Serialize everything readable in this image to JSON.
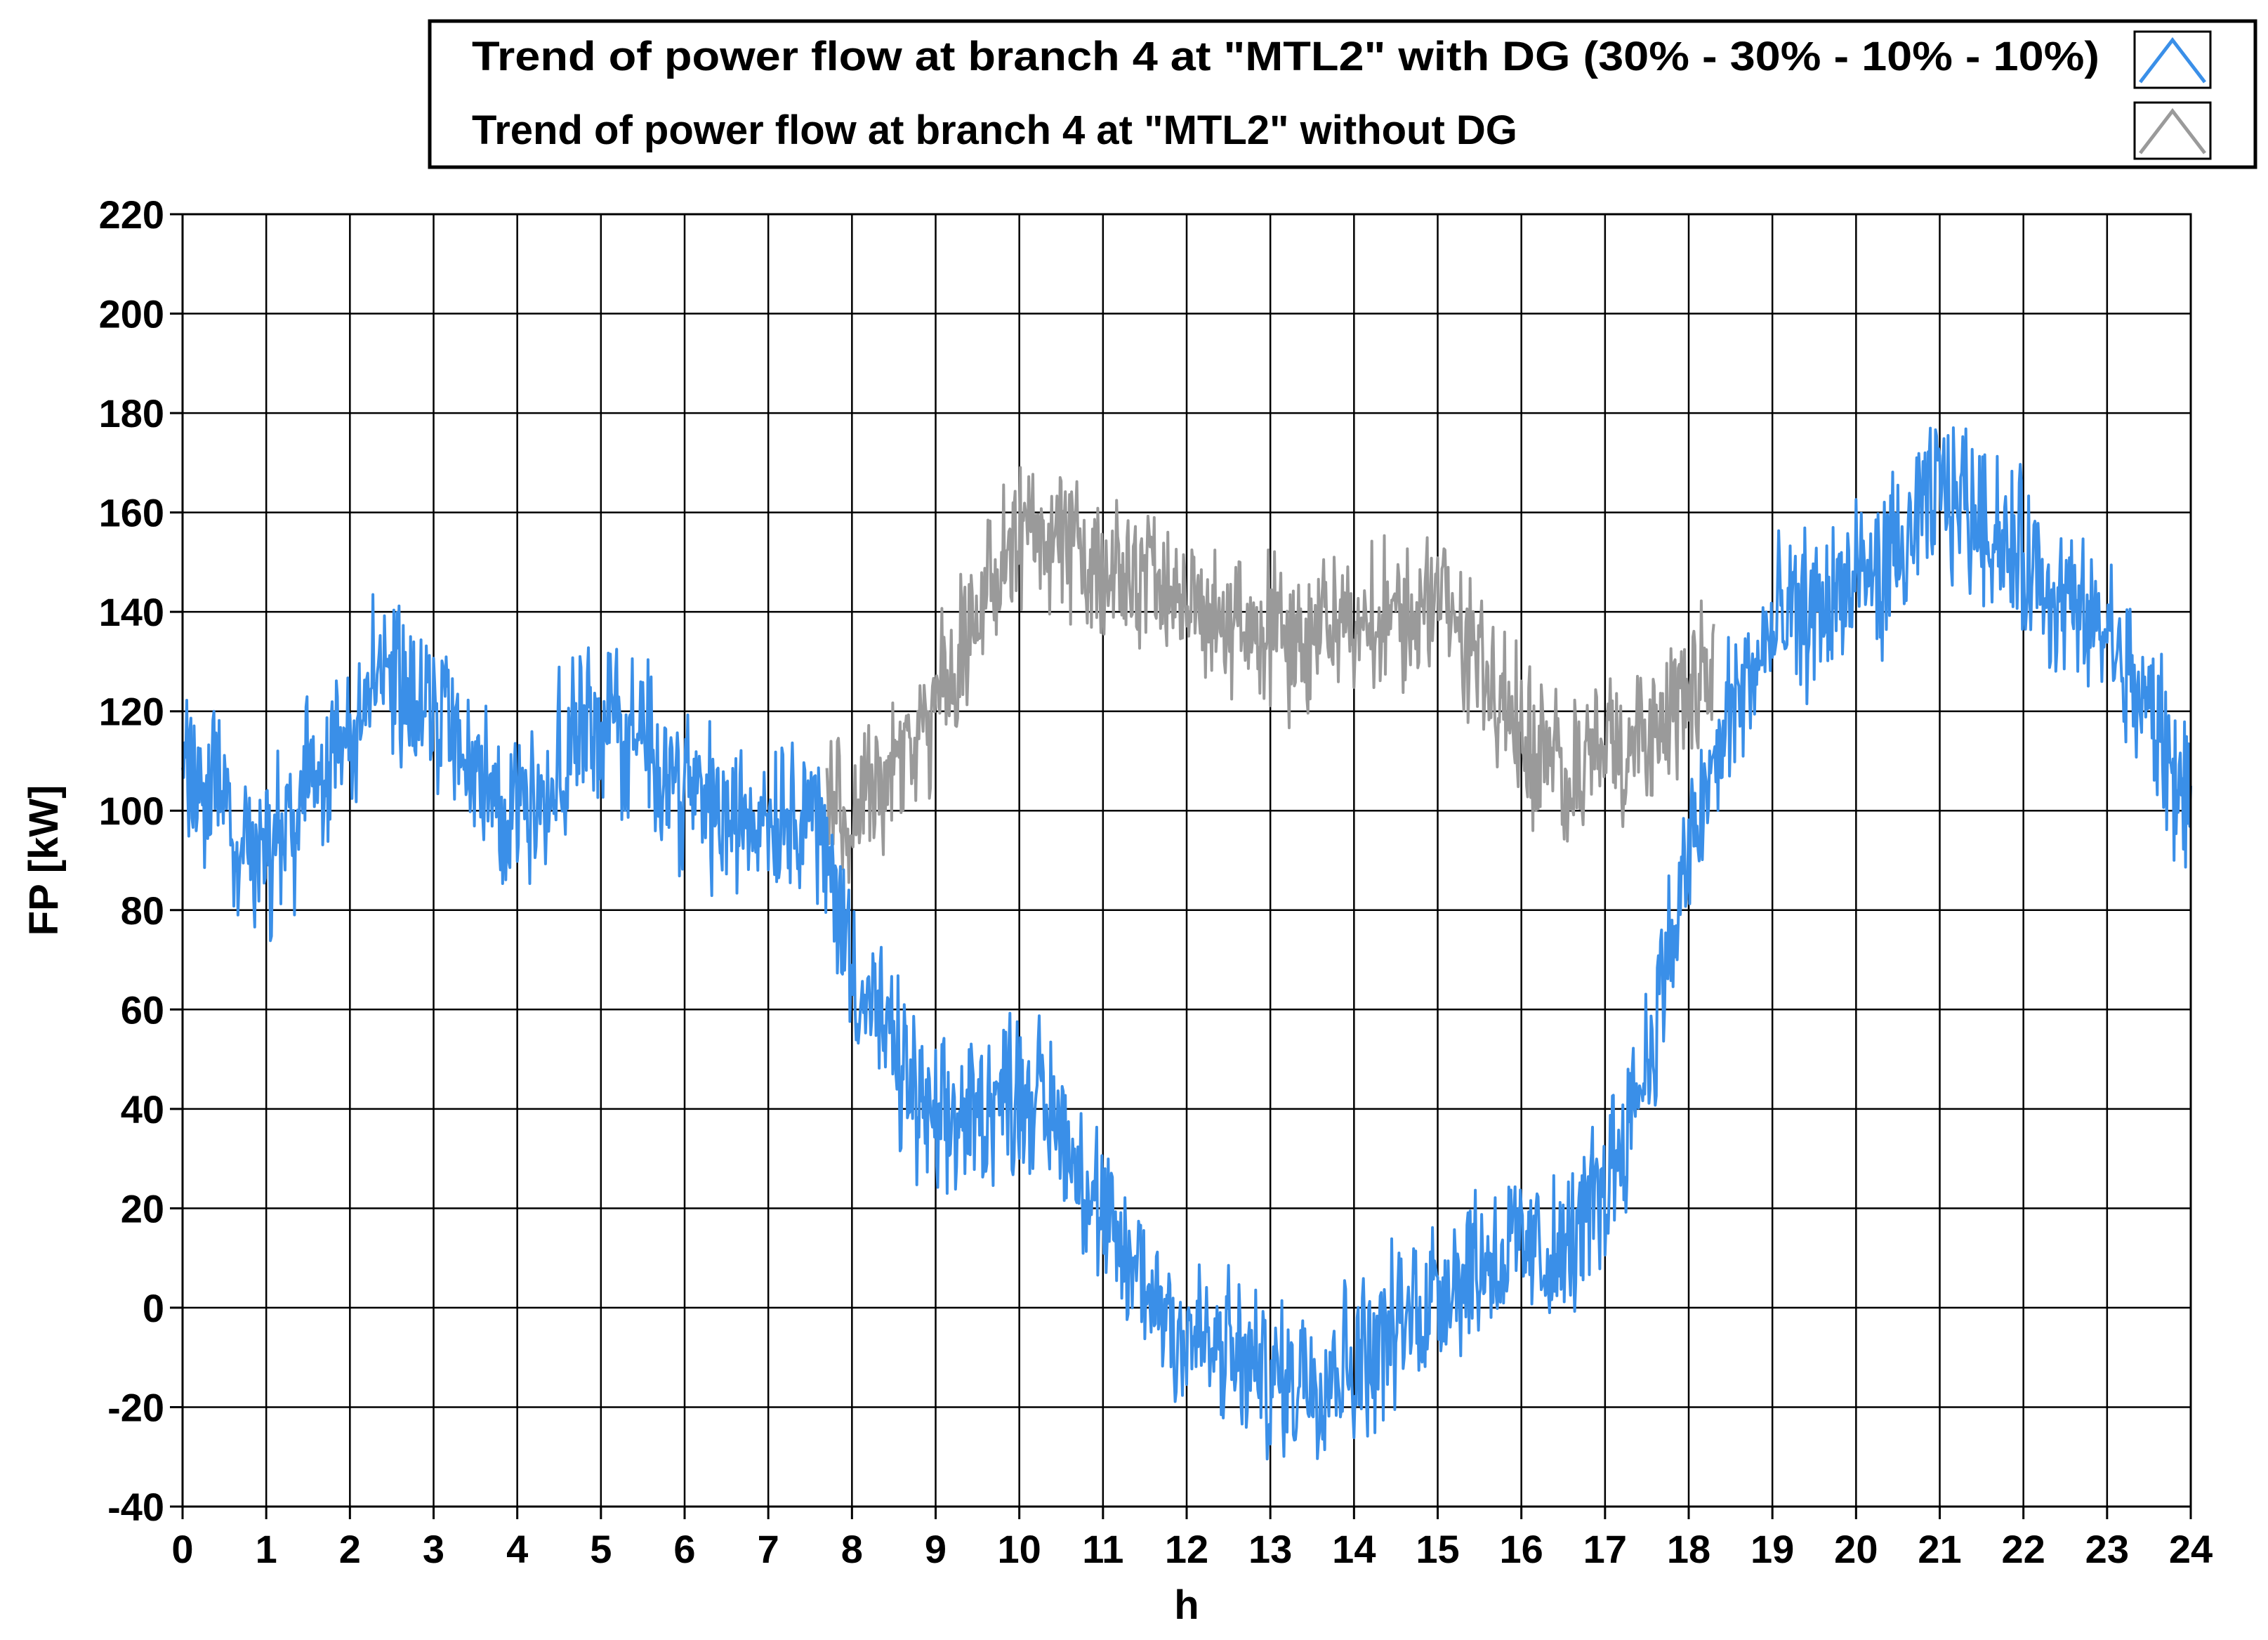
{
  "chart_data": {
    "type": "line",
    "xlabel": "h",
    "ylabel": "FP [kW]",
    "xlim": [
      0,
      24
    ],
    "ylim": [
      -40,
      220
    ],
    "x_ticks": [
      0,
      1,
      2,
      3,
      4,
      5,
      6,
      7,
      8,
      9,
      10,
      11,
      12,
      13,
      14,
      15,
      16,
      17,
      18,
      19,
      20,
      21,
      22,
      23,
      24
    ],
    "y_ticks": [
      -40,
      -20,
      0,
      20,
      40,
      60,
      80,
      100,
      120,
      140,
      160,
      180,
      200,
      220
    ],
    "grid": true,
    "legend_position": "top-right",
    "colors": {
      "with_dg": "#3a8fe8",
      "without_dg": "#9a9a9a"
    },
    "series": [
      {
        "name": "Trend of power flow at branch 4 at \"MTL2\" with DG (30% - 30% - 10% - 10%)",
        "color": "#3a8fe8",
        "noise_amplitude": 12,
        "x": [
          0,
          0.5,
          1.0,
          1.3,
          1.5,
          2.0,
          2.3,
          2.7,
          3.0,
          3.5,
          4.0,
          4.5,
          5.0,
          5.5,
          6.0,
          6.5,
          7.0,
          7.5,
          8.0,
          8.5,
          9.0,
          9.5,
          10.0,
          10.5,
          11.0,
          11.5,
          12.0,
          12.5,
          13.0,
          13.5,
          14.0,
          14.5,
          15.0,
          15.5,
          16.0,
          16.5,
          17.0,
          17.5,
          18.0,
          18.5,
          19.0,
          19.5,
          20.0,
          20.5,
          21.0,
          21.5,
          22.0,
          22.5,
          23.0,
          23.5,
          24.0
        ],
        "y": [
          110,
          100,
          90,
          95,
          108,
          110,
          130,
          125,
          120,
          105,
          100,
          110,
          120,
          115,
          105,
          98,
          100,
          102,
          70,
          50,
          35,
          40,
          45,
          38,
          15,
          5,
          -5,
          -10,
          -15,
          -12,
          -10,
          -5,
          5,
          10,
          12,
          10,
          25,
          50,
          90,
          120,
          135,
          140,
          145,
          150,
          165,
          160,
          150,
          140,
          135,
          120,
          100
        ]
      },
      {
        "name": "Trend of power flow at branch 4 at \"MTL2\" without DG",
        "color": "#9a9a9a",
        "noise_amplitude": 11,
        "x": [
          7.7,
          8.0,
          8.5,
          9.0,
          9.5,
          10.0,
          10.5,
          11.0,
          11.5,
          12.0,
          12.5,
          13.0,
          13.5,
          14.0,
          14.5,
          15.0,
          15.5,
          16.0,
          16.5,
          17.0,
          17.5,
          18.0,
          18.3
        ],
        "y": [
          100,
          100,
          105,
          120,
          140,
          155,
          155,
          148,
          145,
          142,
          138,
          135,
          135,
          140,
          138,
          142,
          132,
          115,
          108,
          112,
          118,
          122,
          125
        ]
      }
    ]
  }
}
